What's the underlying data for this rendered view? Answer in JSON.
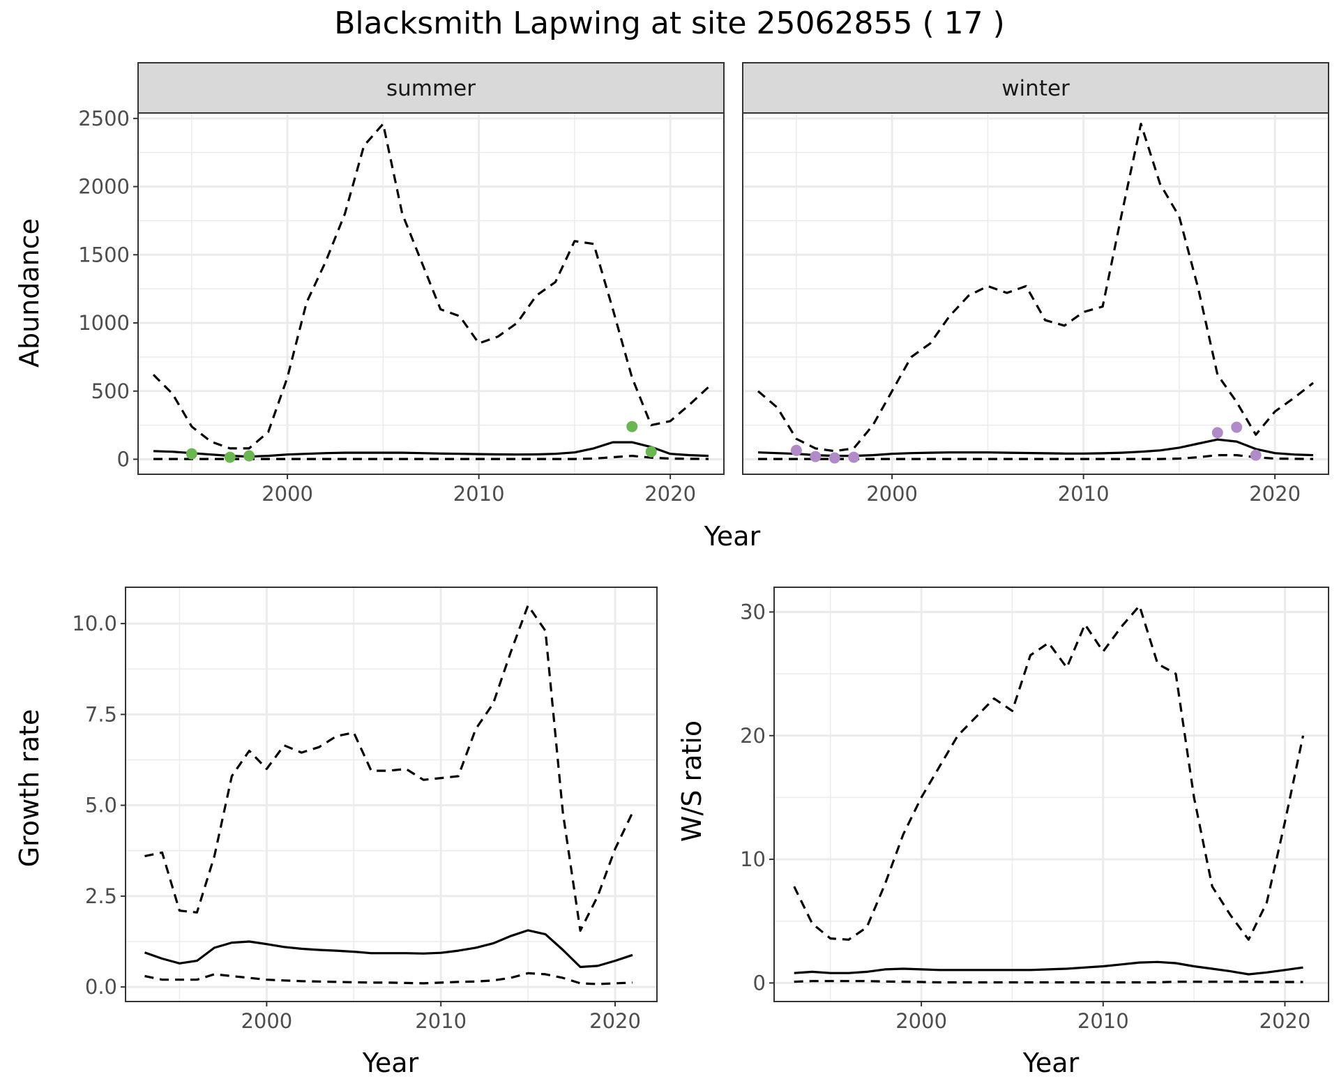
{
  "figure": {
    "title": "Blacksmith Lapwing at site 25062855 ( 17 )"
  },
  "colors": {
    "summer_points": "#6ab64f",
    "winter_points": "#b08bc8",
    "line": "#000000",
    "strip_fill": "#d9d9d9",
    "grid": "#ebebeb"
  },
  "chart_data": [
    {
      "type": "line",
      "panel": "abundance-faceted",
      "xlabel": "Year",
      "ylabel": "Abundance",
      "xlim": [
        1992.2,
        2022.8
      ],
      "ylim": [
        -110,
        2540
      ],
      "xticks": [
        2000,
        2010,
        2020
      ],
      "yticks": [
        0,
        500,
        1000,
        1500,
        2000,
        2500
      ],
      "grid": true,
      "facets": [
        {
          "label": "summer",
          "point_color_key": "summer_points",
          "estimate": {
            "x": [
              1993,
              1994,
              1995,
              1996,
              1997,
              1998,
              1999,
              2000,
              2001,
              2002,
              2003,
              2004,
              2005,
              2006,
              2007,
              2008,
              2009,
              2010,
              2011,
              2012,
              2013,
              2014,
              2015,
              2016,
              2017,
              2018,
              2019,
              2020,
              2021,
              2022
            ],
            "y": [
              60,
              55,
              45,
              35,
              25,
              20,
              25,
              35,
              40,
              45,
              48,
              48,
              48,
              48,
              45,
              42,
              40,
              38,
              36,
              35,
              36,
              40,
              50,
              80,
              125,
              125,
              90,
              40,
              30,
              25
            ]
          },
          "upper": {
            "x": [
              1993,
              1994,
              1995,
              1996,
              1997,
              1998,
              1999,
              2000,
              2001,
              2002,
              2003,
              2004,
              2005,
              2006,
              2007,
              2008,
              2009,
              2010,
              2011,
              2012,
              2013,
              2014,
              2015,
              2016,
              2017,
              2018,
              2019,
              2020,
              2021,
              2022
            ],
            "y": [
              620,
              480,
              240,
              130,
              80,
              80,
              200,
              600,
              1150,
              1450,
              1800,
              2300,
              2460,
              1800,
              1450,
              1100,
              1050,
              850,
              900,
              1000,
              1200,
              1300,
              1600,
              1580,
              1100,
              600,
              250,
              280,
              400,
              530
            ]
          },
          "lower": {
            "x": [
              1993,
              1994,
              1995,
              1996,
              1997,
              1998,
              1999,
              2000,
              2001,
              2002,
              2003,
              2004,
              2005,
              2006,
              2007,
              2008,
              2009,
              2010,
              2011,
              2012,
              2013,
              2014,
              2015,
              2016,
              2017,
              2018,
              2019,
              2020,
              2021,
              2022
            ],
            "y": [
              2,
              2,
              2,
              2,
              2,
              2,
              2,
              2,
              2,
              2,
              2,
              2,
              2,
              2,
              2,
              2,
              2,
              2,
              2,
              2,
              2,
              2,
              2,
              5,
              15,
              25,
              12,
              5,
              3,
              2
            ]
          },
          "observed": {
            "x": [
              1995,
              1997,
              1998,
              2018,
              2019
            ],
            "y": [
              40,
              15,
              25,
              240,
              55
            ]
          }
        },
        {
          "label": "winter",
          "point_color_key": "winter_points",
          "estimate": {
            "x": [
              1993,
              1994,
              1995,
              1996,
              1997,
              1998,
              1999,
              2000,
              2001,
              2002,
              2003,
              2004,
              2005,
              2006,
              2007,
              2008,
              2009,
              2010,
              2011,
              2012,
              2013,
              2014,
              2015,
              2016,
              2017,
              2018,
              2019,
              2020,
              2021,
              2022
            ],
            "y": [
              50,
              45,
              40,
              30,
              25,
              25,
              30,
              40,
              45,
              48,
              50,
              50,
              50,
              48,
              46,
              44,
              42,
              42,
              44,
              48,
              55,
              65,
              85,
              115,
              145,
              130,
              75,
              45,
              35,
              30
            ]
          },
          "upper": {
            "x": [
              1993,
              1994,
              1995,
              1996,
              1997,
              1998,
              1999,
              2000,
              2001,
              2002,
              2003,
              2004,
              2005,
              2006,
              2007,
              2008,
              2009,
              2010,
              2011,
              2012,
              2013,
              2014,
              2015,
              2016,
              2017,
              2018,
              2019,
              2020,
              2021,
              2022
            ],
            "y": [
              500,
              380,
              150,
              80,
              60,
              80,
              250,
              500,
              750,
              850,
              1050,
              1200,
              1270,
              1220,
              1270,
              1020,
              980,
              1080,
              1120,
              1800,
              2460,
              2020,
              1780,
              1250,
              620,
              420,
              180,
              350,
              450,
              560
            ]
          },
          "lower": {
            "x": [
              1993,
              1994,
              1995,
              1996,
              1997,
              1998,
              1999,
              2000,
              2001,
              2002,
              2003,
              2004,
              2005,
              2006,
              2007,
              2008,
              2009,
              2010,
              2011,
              2012,
              2013,
              2014,
              2015,
              2016,
              2017,
              2018,
              2019,
              2020,
              2021,
              2022
            ],
            "y": [
              2,
              2,
              2,
              2,
              2,
              2,
              2,
              2,
              2,
              2,
              2,
              2,
              2,
              2,
              2,
              2,
              2,
              2,
              2,
              2,
              2,
              2,
              5,
              15,
              30,
              30,
              15,
              5,
              3,
              2
            ]
          },
          "observed": {
            "x": [
              1995,
              1996,
              1997,
              1998,
              2017,
              2018,
              2019
            ],
            "y": [
              65,
              20,
              10,
              15,
              195,
              235,
              30
            ]
          }
        }
      ]
    },
    {
      "type": "line",
      "panel": "growth-rate",
      "xlabel": "Year",
      "ylabel": "Growth rate",
      "xlim": [
        1991.9,
        2022.4
      ],
      "ylim": [
        -0.4,
        11.0
      ],
      "xticks": [
        2000,
        2010,
        2020
      ],
      "yticks": [
        0.0,
        2.5,
        5.0,
        7.5,
        10.0
      ],
      "ytick_labels": [
        "0.0",
        "2.5",
        "5.0",
        "7.5",
        "10.0"
      ],
      "grid": true,
      "series": [
        {
          "style": "solid",
          "x": [
            1993,
            1994,
            1995,
            1996,
            1997,
            1998,
            1999,
            2000,
            2001,
            2002,
            2003,
            2004,
            2005,
            2006,
            2007,
            2008,
            2009,
            2010,
            2011,
            2012,
            2013,
            2014,
            2015,
            2016,
            2017,
            2018,
            2019,
            2020,
            2021
          ],
          "y": [
            0.95,
            0.78,
            0.65,
            0.72,
            1.08,
            1.22,
            1.25,
            1.18,
            1.1,
            1.05,
            1.02,
            1.0,
            0.97,
            0.93,
            0.93,
            0.93,
            0.92,
            0.94,
            1.0,
            1.08,
            1.2,
            1.4,
            1.56,
            1.45,
            1.02,
            0.55,
            0.58,
            0.72,
            0.88
          ]
        },
        {
          "style": "dashed",
          "x": [
            1993,
            1994,
            1995,
            1996,
            1997,
            1998,
            1999,
            2000,
            2001,
            2002,
            2003,
            2004,
            2005,
            2006,
            2007,
            2008,
            2009,
            2010,
            2011,
            2012,
            2013,
            2014,
            2015,
            2016,
            2017,
            2018,
            2019,
            2020,
            2021
          ],
          "y": [
            3.6,
            3.7,
            2.1,
            2.05,
            3.6,
            5.8,
            6.5,
            6.0,
            6.65,
            6.45,
            6.6,
            6.9,
            7.0,
            5.95,
            5.95,
            6.0,
            5.7,
            5.75,
            5.8,
            7.1,
            7.8,
            9.2,
            10.5,
            9.8,
            4.8,
            1.55,
            2.5,
            3.8,
            4.8
          ]
        },
        {
          "style": "dashed",
          "x": [
            1993,
            1994,
            1995,
            1996,
            1997,
            1998,
            1999,
            2000,
            2001,
            2002,
            2003,
            2004,
            2005,
            2006,
            2007,
            2008,
            2009,
            2010,
            2011,
            2012,
            2013,
            2014,
            2015,
            2016,
            2017,
            2018,
            2019,
            2020,
            2021
          ],
          "y": [
            0.3,
            0.2,
            0.2,
            0.2,
            0.35,
            0.3,
            0.25,
            0.2,
            0.18,
            0.16,
            0.15,
            0.14,
            0.13,
            0.12,
            0.12,
            0.11,
            0.1,
            0.12,
            0.14,
            0.15,
            0.18,
            0.25,
            0.38,
            0.35,
            0.25,
            0.1,
            0.08,
            0.1,
            0.12
          ]
        }
      ]
    },
    {
      "type": "line",
      "panel": "ws-ratio",
      "xlabel": "Year",
      "ylabel": "W/S ratio",
      "xlim": [
        1991.9,
        2022.4
      ],
      "ylim": [
        -1.5,
        32.0
      ],
      "xticks": [
        2000,
        2010,
        2020
      ],
      "yticks": [
        0,
        10,
        20,
        30
      ],
      "grid": true,
      "series": [
        {
          "style": "solid",
          "x": [
            1993,
            1994,
            1995,
            1996,
            1997,
            1998,
            1999,
            2000,
            2001,
            2002,
            2003,
            2004,
            2005,
            2006,
            2007,
            2008,
            2009,
            2010,
            2011,
            2012,
            2013,
            2014,
            2015,
            2016,
            2017,
            2018,
            2019,
            2020,
            2021
          ],
          "y": [
            0.8,
            0.9,
            0.8,
            0.8,
            0.9,
            1.1,
            1.15,
            1.1,
            1.05,
            1.05,
            1.05,
            1.05,
            1.05,
            1.05,
            1.1,
            1.15,
            1.25,
            1.35,
            1.5,
            1.65,
            1.7,
            1.6,
            1.35,
            1.15,
            0.95,
            0.7,
            0.85,
            1.05,
            1.25
          ]
        },
        {
          "style": "dashed",
          "x": [
            1993,
            1994,
            1995,
            1996,
            1997,
            1998,
            1999,
            2000,
            2001,
            2002,
            2003,
            2004,
            2005,
            2006,
            2007,
            2008,
            2009,
            2010,
            2011,
            2012,
            2013,
            2014,
            2015,
            2016,
            2017,
            2018,
            2019,
            2020,
            2021
          ],
          "y": [
            7.8,
            4.8,
            3.6,
            3.5,
            4.5,
            8.0,
            12.0,
            15.0,
            17.5,
            20.0,
            21.5,
            23.0,
            22.0,
            26.5,
            27.5,
            25.5,
            29.0,
            26.8,
            28.8,
            30.5,
            25.8,
            25.0,
            15.0,
            7.8,
            5.5,
            3.5,
            6.5,
            13.0,
            20.0
          ]
        },
        {
          "style": "dashed",
          "x": [
            1993,
            1994,
            1995,
            1996,
            1997,
            1998,
            1999,
            2000,
            2001,
            2002,
            2003,
            2004,
            2005,
            2006,
            2007,
            2008,
            2009,
            2010,
            2011,
            2012,
            2013,
            2014,
            2015,
            2016,
            2017,
            2018,
            2019,
            2020,
            2021
          ],
          "y": [
            0.1,
            0.15,
            0.15,
            0.15,
            0.15,
            0.12,
            0.1,
            0.08,
            0.05,
            0.05,
            0.05,
            0.05,
            0.05,
            0.05,
            0.05,
            0.05,
            0.05,
            0.05,
            0.05,
            0.05,
            0.05,
            0.1,
            0.1,
            0.1,
            0.1,
            0.1,
            0.08,
            0.08,
            0.08
          ]
        }
      ]
    }
  ]
}
